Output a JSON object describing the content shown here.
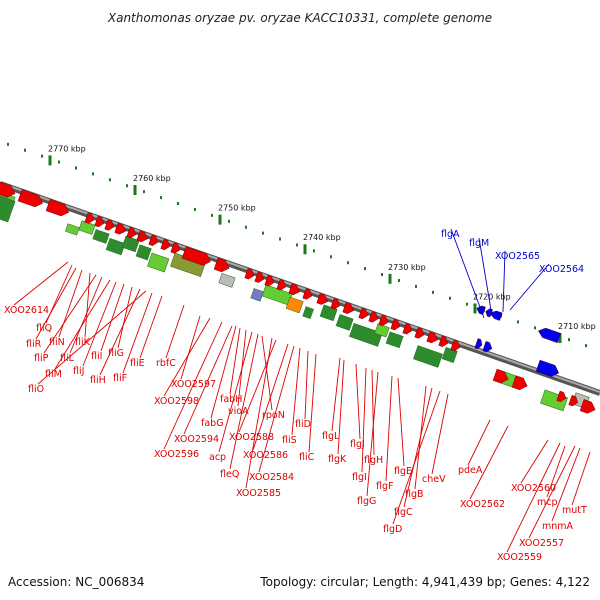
{
  "title": "Xanthomonas oryzae pv. oryzae KACC10331, complete genome",
  "footer": {
    "accession": "Accession: NC_006834",
    "summary": "Topology: circular; Length: 4,941,439 bp; Genes: 4,122"
  },
  "colors": {
    "forward_gene": "#ee0000",
    "reverse_gene": "#0000ee",
    "label_red": "#dd0000",
    "label_blue": "#0000cc",
    "backbone": "#808080",
    "tick": "#1a7a1a",
    "hit_dark": "#2e8b2e",
    "hit_light": "#66cc33",
    "hit_olive": "#8a9a33",
    "hit_orange": "#ff8800"
  },
  "scale": {
    "ticks": [
      {
        "kbp": 2770,
        "label": "2770 kbp"
      },
      {
        "kbp": 2760,
        "label": "2760 kbp"
      },
      {
        "kbp": 2750,
        "label": "2750 kbp"
      },
      {
        "kbp": 2740,
        "label": "2740 kbp"
      },
      {
        "kbp": 2730,
        "label": "2730 kbp"
      },
      {
        "kbp": 2720,
        "label": "2720 kbp"
      },
      {
        "kbp": 2710,
        "label": "2710 kbp"
      }
    ]
  },
  "labels_left": [
    "XOO2614",
    "fliQ",
    "fliR",
    "fliN",
    "fliK",
    "fliP",
    "fliL",
    "fliM",
    "fliJ",
    "fliI",
    "fliG",
    "fliH",
    "fliO",
    "fliF",
    "fliE",
    "rbfC",
    "XOO2597",
    "XOO2598",
    "fabH",
    "fabG",
    "vioA",
    "rpoN",
    "XOO2594",
    "XOO2588",
    "fliS",
    "fliD",
    "XOO2596",
    "acp",
    "XOO2586",
    "fliC",
    "fleQ",
    "XOO2584",
    "XOO2585"
  ],
  "labels_middle": [
    "flgL",
    "flgK",
    "flgJ",
    "flgH",
    "flgI",
    "flgE",
    "flgF",
    "flgG",
    "cheV",
    "flgB",
    "flgC",
    "flgD",
    "pdeA",
    "XOO2562"
  ],
  "labels_right": [
    "XOO2560",
    "mcp",
    "mutT",
    "mnmA",
    "XOO2557",
    "XOO2559"
  ],
  "labels_reverse": [
    "flgA",
    "flgM",
    "XOO2565",
    "XOO2564"
  ]
}
